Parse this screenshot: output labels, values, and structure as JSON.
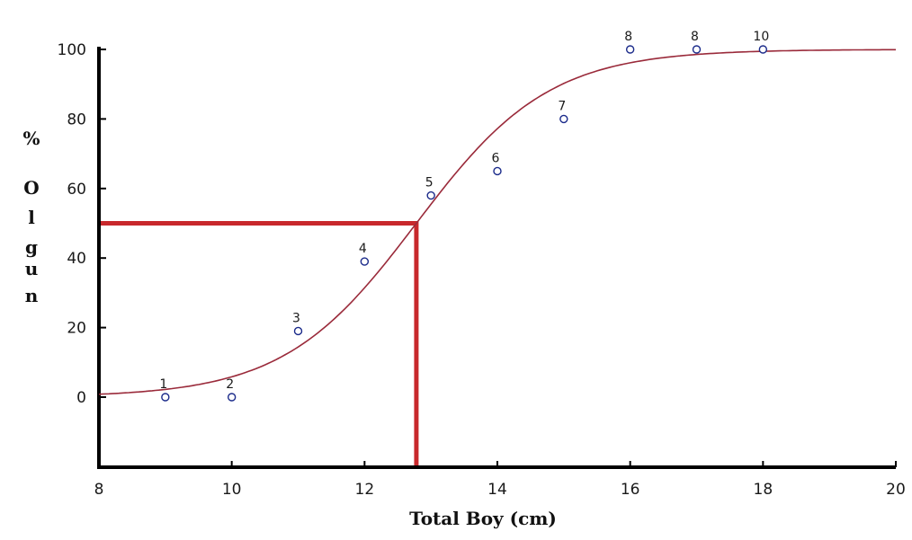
{
  "chart_data": {
    "type": "scatter",
    "xlabel": "Total Boy (cm)",
    "ylabel_letters": [
      "%",
      "O",
      "l",
      "g",
      "u",
      "n"
    ],
    "xlim": [
      8,
      20
    ],
    "ylim": [
      -20,
      100
    ],
    "x_ticks": [
      "8",
      "10",
      "12",
      "14",
      "16",
      "18",
      "20"
    ],
    "y_ticks": [
      "100",
      "80",
      "60",
      "40",
      "20",
      "0"
    ],
    "grid": false,
    "points": [
      {
        "label": "1",
        "x": 9,
        "y": 0
      },
      {
        "label": "2",
        "x": 10,
        "y": 0
      },
      {
        "label": "3",
        "x": 11,
        "y": 19
      },
      {
        "label": "4",
        "x": 12,
        "y": 39
      },
      {
        "label": "5",
        "x": 13,
        "y": 58
      },
      {
        "label": "6",
        "x": 14,
        "y": 65
      },
      {
        "label": "7",
        "x": 15,
        "y": 80
      },
      {
        "label": "8",
        "x": 16,
        "y": 100
      },
      {
        "label": "8",
        "x": 17,
        "y": 100
      },
      {
        "label": "10",
        "x": 18,
        "y": 100
      }
    ],
    "fit_curve": {
      "type": "logistic",
      "midpoint_x": 12.78,
      "slope": 1.0,
      "max_y": 100
    },
    "reference_lines": {
      "x": 12.78,
      "y": 50
    },
    "colors": {
      "points": "#1a2a8a",
      "curve": "#9a2a3a",
      "reference": "#c8282c",
      "axis": "#000000"
    }
  }
}
